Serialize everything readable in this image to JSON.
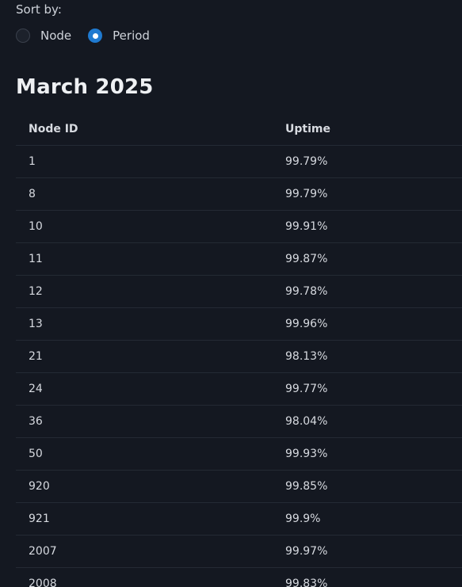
{
  "sort": {
    "label": "Sort by:",
    "options": [
      {
        "label": "Node",
        "selected": false
      },
      {
        "label": "Period",
        "selected": true
      }
    ]
  },
  "section": {
    "title": "March 2025"
  },
  "table": {
    "headers": {
      "node": "Node ID",
      "uptime": "Uptime"
    },
    "rows": [
      {
        "node": "1",
        "uptime": "99.79%"
      },
      {
        "node": "8",
        "uptime": "99.79%"
      },
      {
        "node": "10",
        "uptime": "99.91%"
      },
      {
        "node": "11",
        "uptime": "99.87%"
      },
      {
        "node": "12",
        "uptime": "99.78%"
      },
      {
        "node": "13",
        "uptime": "99.96%"
      },
      {
        "node": "21",
        "uptime": "98.13%"
      },
      {
        "node": "24",
        "uptime": "99.77%"
      },
      {
        "node": "36",
        "uptime": "98.04%"
      },
      {
        "node": "50",
        "uptime": "99.93%"
      },
      {
        "node": "920",
        "uptime": "99.85%"
      },
      {
        "node": "921",
        "uptime": "99.9%"
      },
      {
        "node": "2007",
        "uptime": "99.97%"
      },
      {
        "node": "2008",
        "uptime": "99.83%"
      }
    ]
  },
  "colors": {
    "background": "#141821",
    "accent": "#1f7ad0",
    "text": "#d7dae0",
    "divider": "#242a34"
  }
}
